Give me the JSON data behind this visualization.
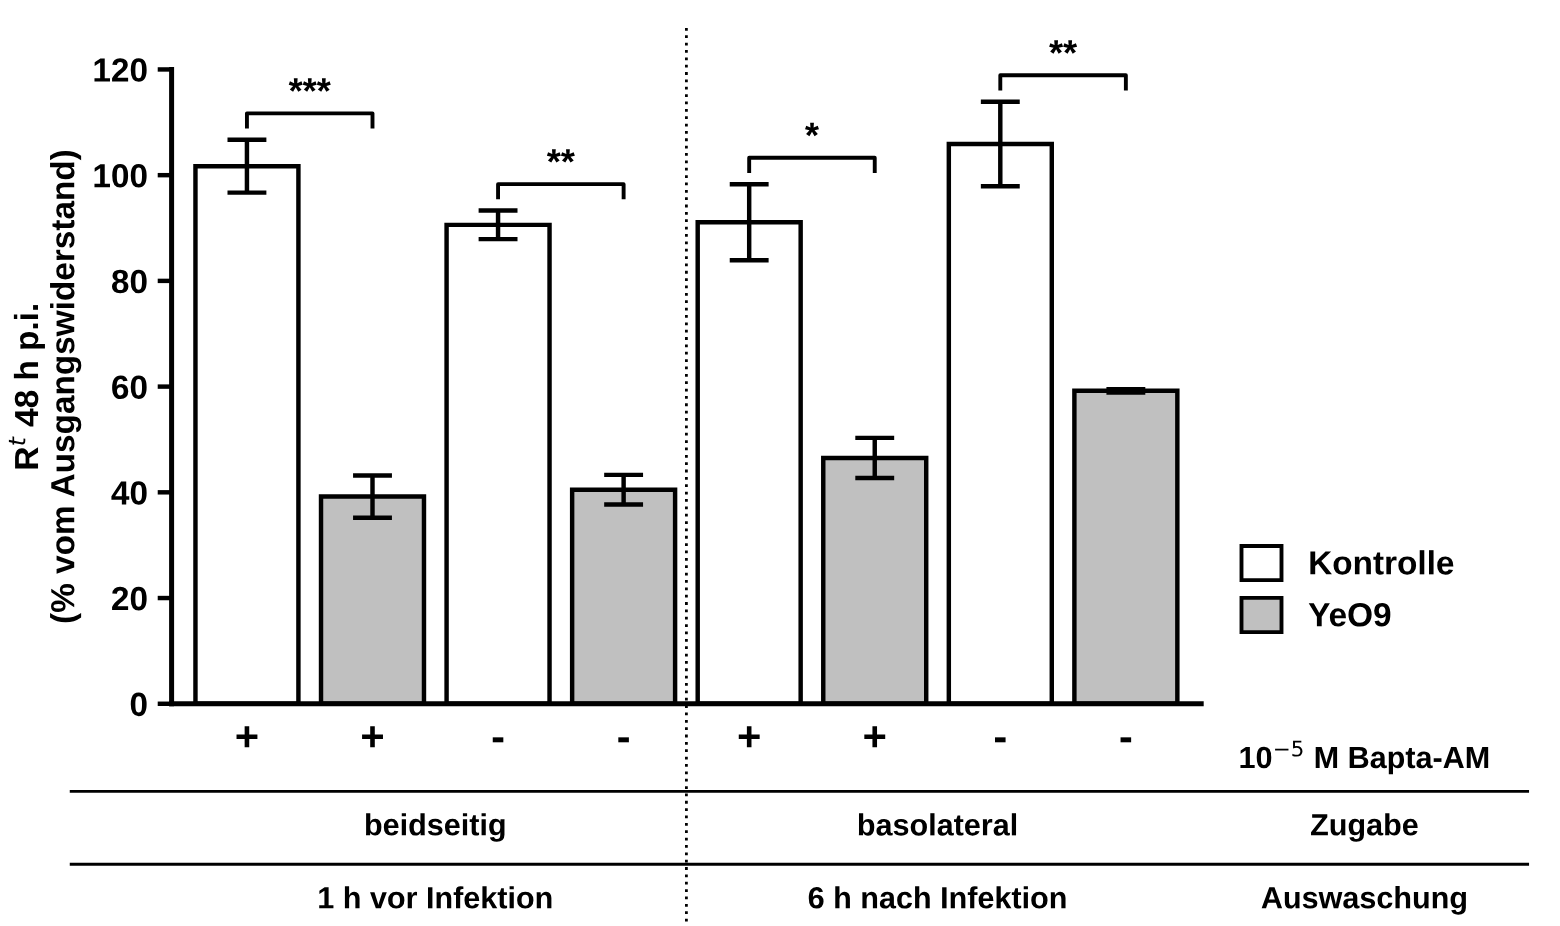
{
  "chart_data": {
    "type": "bar",
    "ylabel": "R$^{t}$ 48 h p.i.\n(% vom Ausgangswiderstand)",
    "categories": [
      "+",
      "+",
      "-",
      "-",
      "+",
      "+",
      "-",
      "-"
    ],
    "series": [
      {
        "name": "Kontrolle",
        "color": "#ffffff",
        "values": [
          101.7,
          null,
          90.6,
          null,
          91.1,
          null,
          105.9,
          null
        ],
        "errors": [
          5,
          null,
          2.7,
          null,
          7.2,
          null,
          8,
          null
        ]
      },
      {
        "name": "YeO9",
        "color": "#c0c0c0",
        "values": [
          null,
          39.2,
          null,
          40.5,
          null,
          46.5,
          null,
          59.2
        ],
        "errors": [
          null,
          4,
          null,
          2.8,
          null,
          3.8,
          null,
          0.3
        ]
      }
    ],
    "ylim": [
      0,
      120
    ],
    "yticks": [
      0,
      20,
      40,
      60,
      80,
      100,
      120
    ],
    "grid": false,
    "legend": "right",
    "annotations": [
      "***",
      "**",
      "*",
      "**",
      "10$^{−5}$ M Bapta-AM",
      "beidseitig",
      "basolateral",
      "Zugabe",
      "1 h vor Infektion",
      "6 h nach Infektion",
      "Auswaschung"
    ]
  }
}
